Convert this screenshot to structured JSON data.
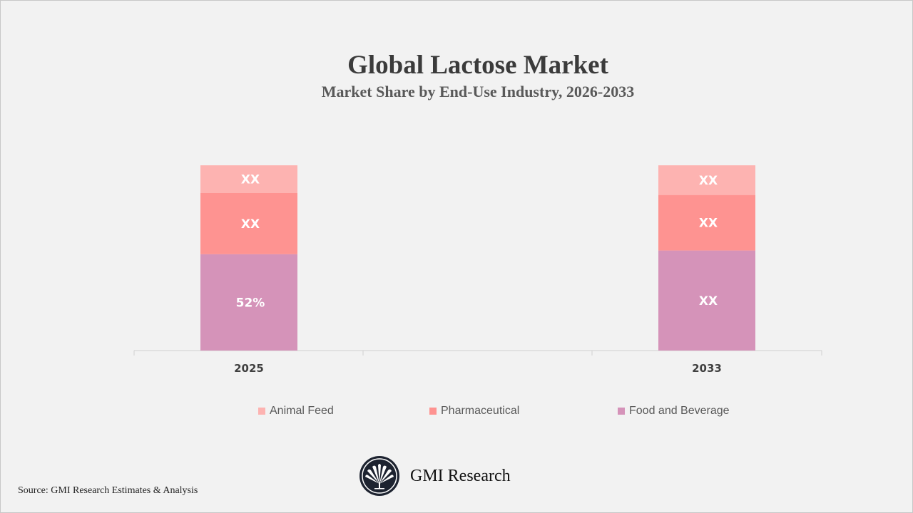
{
  "chart_data": {
    "type": "bar",
    "stacked": true,
    "title": "Global Lactose Market",
    "subtitle": "Market Share by End-Use Industry, 2026-2033",
    "categories": [
      "2025",
      "2033"
    ],
    "series": [
      {
        "name": "Food and Beverage",
        "color": "#d593b9",
        "values": [
          52,
          54
        ],
        "labels": [
          "52%",
          "XX"
        ]
      },
      {
        "name": "Pharmaceutical",
        "color": "#fe9391",
        "values": [
          33,
          30
        ],
        "labels": [
          "XX",
          "XX"
        ]
      },
      {
        "name": "Animal Feed",
        "color": "#fdb3b1",
        "values": [
          15,
          16
        ],
        "labels": [
          "XX",
          "XX"
        ]
      }
    ],
    "legend_order": [
      "Animal Feed",
      "Pharmaceutical",
      "Food and Beverage"
    ],
    "legend_position": "bottom",
    "grid": false,
    "ylim": [
      0,
      100
    ]
  },
  "source": "Source: GMI Research Estimates & Analysis",
  "logo": {
    "text": "GMI Research",
    "icon": "gmi-fan-logo-icon"
  }
}
